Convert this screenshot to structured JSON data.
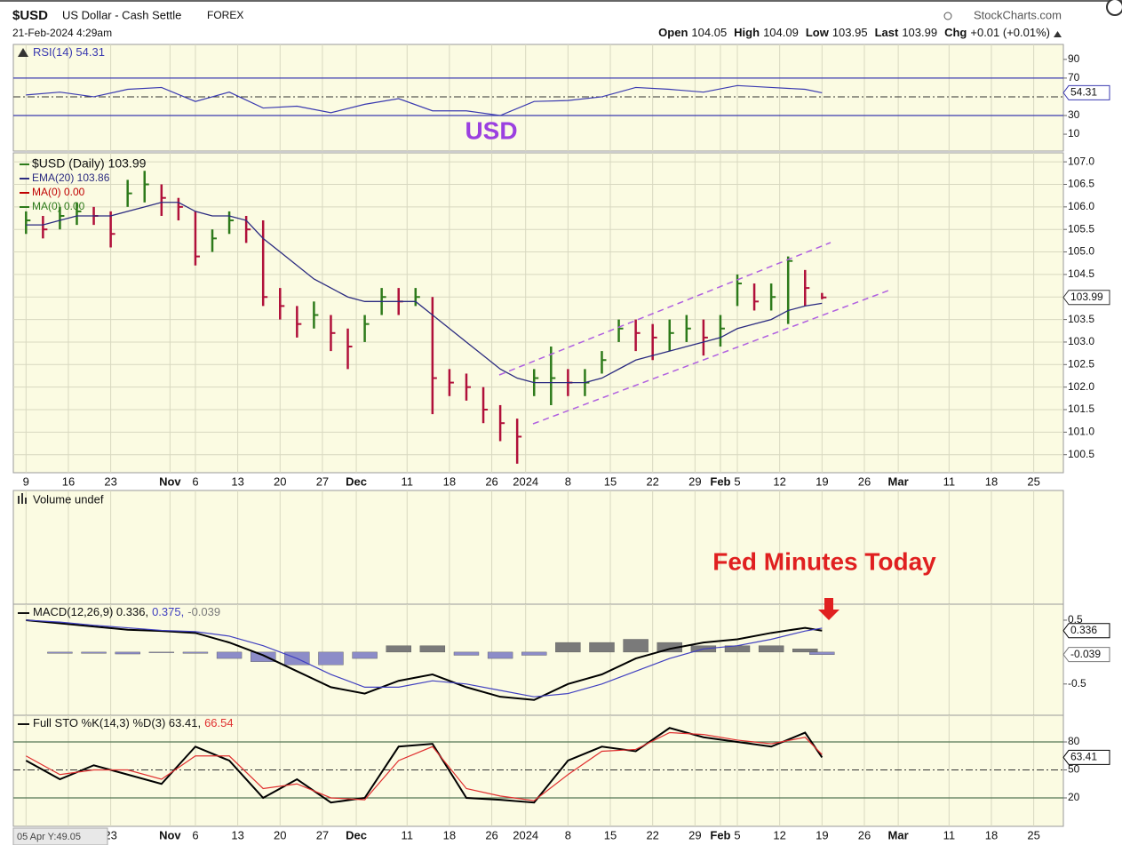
{
  "header": {
    "symbol": "$USD",
    "name": "US Dollar - Cash Settle",
    "exchange": "FOREX",
    "source": "StockCharts.com",
    "datetime": "21-Feb-2024 4:29am",
    "quote": [
      [
        "Open",
        "104.05"
      ],
      [
        "High",
        "104.09"
      ],
      [
        "Low",
        "103.95"
      ],
      [
        "Last",
        "103.99"
      ],
      [
        "Chg",
        "+0.01 (+0.01%)"
      ]
    ]
  },
  "annotations": {
    "label": "USD",
    "note": "Fed Minutes Today",
    "corner_info": "05 Apr Y:49.05"
  },
  "chart_data": [
    {
      "type": "line",
      "ylim": [
        -8,
        106
      ],
      "yticks": [
        90,
        70,
        30,
        10
      ],
      "hlines": [
        70,
        30
      ],
      "hline_color": "#3a3ab0",
      "dashline": 50,
      "x": [
        0,
        4,
        8,
        12,
        16,
        20,
        24,
        28,
        32,
        36,
        40,
        44,
        48,
        52,
        56,
        60,
        64,
        68,
        72,
        76,
        80,
        84,
        88,
        92,
        94
      ],
      "series": [
        {
          "name": "RSI(14) 54.31",
          "color": "#3a3ab0",
          "tag": true,
          "values": [
            52,
            55,
            50,
            58,
            60,
            45,
            55,
            38,
            40,
            33,
            42,
            48,
            35,
            35,
            30,
            45,
            46,
            50,
            60,
            58,
            55,
            62,
            60,
            58,
            54.31
          ]
        }
      ]
    },
    {
      "type": "hlc",
      "ylim": [
        100.1,
        107.2
      ],
      "grid": true,
      "yticks": [
        {
          "value": 107,
          "label": "107.0"
        },
        106.5,
        {
          "value": 106,
          "label": "106.0"
        },
        105.5,
        {
          "value": 105,
          "label": "105.0"
        },
        104.5,
        {
          "value": 104,
          "label": "104.0"
        },
        103.5,
        {
          "value": 103,
          "label": "103.0"
        },
        102.5,
        {
          "value": 102,
          "label": "102.0"
        },
        101.5,
        {
          "value": 101,
          "label": "101.0"
        },
        100.5
      ],
      "xlim": [
        -1.5,
        122.5
      ],
      "xticks": [
        {
          "value": 0,
          "label": "9"
        },
        {
          "value": 5,
          "label": "16"
        },
        {
          "value": 10,
          "label": "23"
        },
        {
          "value": 17,
          "label": "Nov"
        },
        {
          "value": 20,
          "label": "6"
        },
        {
          "value": 25,
          "label": "13"
        },
        {
          "value": 30,
          "label": "20"
        },
        {
          "value": 35,
          "label": "27"
        },
        {
          "value": 39,
          "label": "Dec"
        },
        {
          "value": 45,
          "label": "11"
        },
        {
          "value": 50,
          "label": "18"
        },
        {
          "value": 55,
          "label": "26"
        },
        {
          "value": 59,
          "label": "2024"
        },
        {
          "value": 64,
          "label": "8"
        },
        {
          "value": 69,
          "label": "15"
        },
        {
          "value": 74,
          "label": "22"
        },
        {
          "value": 79,
          "label": "29"
        },
        {
          "value": 82,
          "label": "Feb"
        },
        {
          "value": 84,
          "label": "5"
        },
        {
          "value": 89,
          "label": "12"
        },
        {
          "value": 94,
          "label": "19"
        },
        {
          "value": 99,
          "label": "26"
        },
        {
          "value": 103,
          "label": "Mar"
        },
        {
          "value": 109,
          "label": "11"
        },
        {
          "value": 114,
          "label": "18"
        },
        {
          "value": 119,
          "label": "25"
        }
      ],
      "x": [
        0,
        2,
        4,
        6,
        8,
        10,
        12,
        14,
        16,
        18,
        20,
        22,
        24,
        26,
        28,
        30,
        32,
        34,
        36,
        38,
        40,
        42,
        44,
        46,
        48,
        50,
        52,
        54,
        56,
        58,
        60,
        62,
        64,
        66,
        68,
        70,
        72,
        74,
        76,
        78,
        80,
        82,
        84,
        86,
        88,
        90,
        92,
        94
      ],
      "series": [
        {
          "name": "$USD (Daily) 103.99",
          "type": "hlc",
          "color": "#2d7a1a",
          "down_color": "#b0103a",
          "tag": true,
          "high": [
            105.9,
            105.8,
            106.0,
            106.1,
            106.0,
            105.9,
            106.6,
            106.8,
            106.5,
            106.2,
            105.9,
            105.5,
            105.9,
            105.8,
            105.7,
            104.2,
            103.8,
            103.9,
            103.6,
            103.3,
            103.6,
            104.2,
            104.2,
            104.2,
            104.0,
            102.4,
            102.3,
            102.0,
            101.6,
            101.3,
            102.4,
            102.9,
            102.4,
            102.4,
            102.8,
            103.5,
            103.5,
            103.4,
            103.5,
            103.6,
            103.5,
            103.6,
            104.5,
            104.3,
            104.3,
            104.9,
            104.6,
            104.09
          ],
          "low": [
            105.4,
            105.3,
            105.5,
            105.6,
            105.6,
            105.1,
            106.0,
            106.1,
            105.8,
            105.7,
            104.7,
            105.0,
            105.4,
            105.2,
            103.8,
            103.5,
            103.1,
            103.3,
            102.8,
            102.4,
            103.0,
            103.6,
            103.6,
            103.8,
            101.4,
            101.8,
            101.7,
            101.2,
            100.8,
            100.3,
            101.8,
            101.6,
            101.8,
            101.8,
            102.3,
            103.0,
            102.8,
            102.6,
            102.8,
            103.0,
            102.7,
            102.9,
            103.8,
            103.7,
            103.7,
            103.4,
            103.8,
            103.95
          ],
          "close": [
            105.7,
            105.5,
            105.8,
            105.9,
            105.8,
            105.4,
            106.3,
            106.5,
            106.2,
            106.0,
            104.9,
            105.3,
            105.7,
            105.5,
            104.0,
            103.8,
            103.4,
            103.6,
            103.2,
            102.9,
            103.4,
            104.0,
            103.9,
            104.0,
            102.2,
            102.1,
            102.0,
            101.5,
            101.2,
            100.9,
            102.2,
            102.2,
            102.1,
            102.1,
            102.6,
            103.3,
            103.2,
            103.1,
            103.2,
            103.3,
            103.1,
            103.3,
            104.3,
            103.9,
            104.0,
            104.8,
            104.2,
            103.99
          ]
        },
        {
          "name": "EMA(20) 103.86",
          "color": "#2b2b80",
          "values": [
            105.6,
            105.6,
            105.7,
            105.8,
            105.8,
            105.8,
            105.9,
            106.0,
            106.1,
            106.1,
            105.9,
            105.8,
            105.8,
            105.7,
            105.3,
            105.0,
            104.7,
            104.4,
            104.2,
            104.0,
            103.9,
            103.9,
            103.9,
            103.9,
            103.6,
            103.3,
            103.0,
            102.7,
            102.4,
            102.2,
            102.1,
            102.1,
            102.1,
            102.1,
            102.2,
            102.4,
            102.6,
            102.7,
            102.8,
            102.9,
            103.0,
            103.1,
            103.3,
            103.4,
            103.5,
            103.7,
            103.8,
            103.86
          ]
        },
        {
          "name": "MA(0) 0.00",
          "color": "#c00000"
        },
        {
          "name": "MA(0) 0.00",
          "color": "#2d7a1a"
        }
      ]
    },
    {
      "type": "bar",
      "title": "Volume undef"
    },
    {
      "type": "line",
      "ylim": [
        -0.99,
        0.75
      ],
      "yticks": [
        0.5,
        -0.5
      ],
      "x": [
        0,
        4,
        8,
        12,
        16,
        20,
        24,
        28,
        32,
        36,
        40,
        44,
        48,
        52,
        56,
        60,
        64,
        68,
        72,
        76,
        80,
        84,
        88,
        92,
        94
      ],
      "series": [
        {
          "name": "MACD(12,26,9) 0.336,",
          "color": "#000000",
          "tag": true,
          "width": 2,
          "values": [
            0.5,
            0.45,
            0.4,
            0.35,
            0.33,
            0.3,
            0.15,
            -0.05,
            -0.3,
            -0.55,
            -0.65,
            -0.45,
            -0.35,
            -0.55,
            -0.7,
            -0.75,
            -0.5,
            -0.35,
            -0.1,
            0.05,
            0.15,
            0.2,
            0.3,
            0.38,
            0.336
          ]
        },
        {
          "name": "0.375,",
          "color": "#4040c0",
          "values": [
            0.5,
            0.47,
            0.42,
            0.38,
            0.34,
            0.32,
            0.25,
            0.1,
            -0.1,
            -0.35,
            -0.55,
            -0.55,
            -0.45,
            -0.5,
            -0.6,
            -0.7,
            -0.65,
            -0.5,
            -0.3,
            -0.1,
            0.05,
            0.1,
            0.2,
            0.33,
            0.375
          ]
        },
        {
          "name": "-0.039",
          "type": "bar",
          "color": "#7a7a7a",
          "neg_color": "#8c8cc8",
          "tag": true,
          "values": [
            0,
            -0.02,
            -0.02,
            -0.03,
            -0.01,
            -0.02,
            -0.1,
            -0.15,
            -0.2,
            -0.2,
            -0.1,
            0.1,
            0.1,
            -0.05,
            -0.1,
            -0.05,
            0.15,
            0.15,
            0.2,
            0.15,
            0.1,
            0.1,
            0.1,
            0.05,
            -0.039
          ]
        }
      ]
    },
    {
      "type": "line",
      "ylim": [
        -10.5,
        108.6
      ],
      "yticks": [
        80,
        50,
        20
      ],
      "hlines": [
        80,
        20
      ],
      "hline_color": "#557755",
      "dashline": 50,
      "x": [
        0,
        4,
        8,
        12,
        16,
        20,
        24,
        28,
        32,
        36,
        40,
        44,
        48,
        52,
        56,
        60,
        64,
        68,
        72,
        76,
        80,
        84,
        88,
        92,
        94
      ],
      "series": [
        {
          "name": "Full STO %K(14,3) %D(3) 63.41,",
          "color": "#000000",
          "tag": true,
          "width": 2,
          "values": [
            60,
            40,
            55,
            45,
            35,
            75,
            60,
            20,
            40,
            15,
            20,
            75,
            78,
            20,
            18,
            15,
            60,
            75,
            70,
            95,
            85,
            80,
            75,
            90,
            63.41
          ]
        },
        {
          "name": "66.54",
          "color": "#e03030",
          "values": [
            65,
            45,
            50,
            50,
            40,
            65,
            65,
            30,
            35,
            20,
            18,
            60,
            75,
            30,
            22,
            17,
            45,
            70,
            72,
            90,
            88,
            82,
            78,
            85,
            66.54
          ]
        }
      ]
    }
  ]
}
